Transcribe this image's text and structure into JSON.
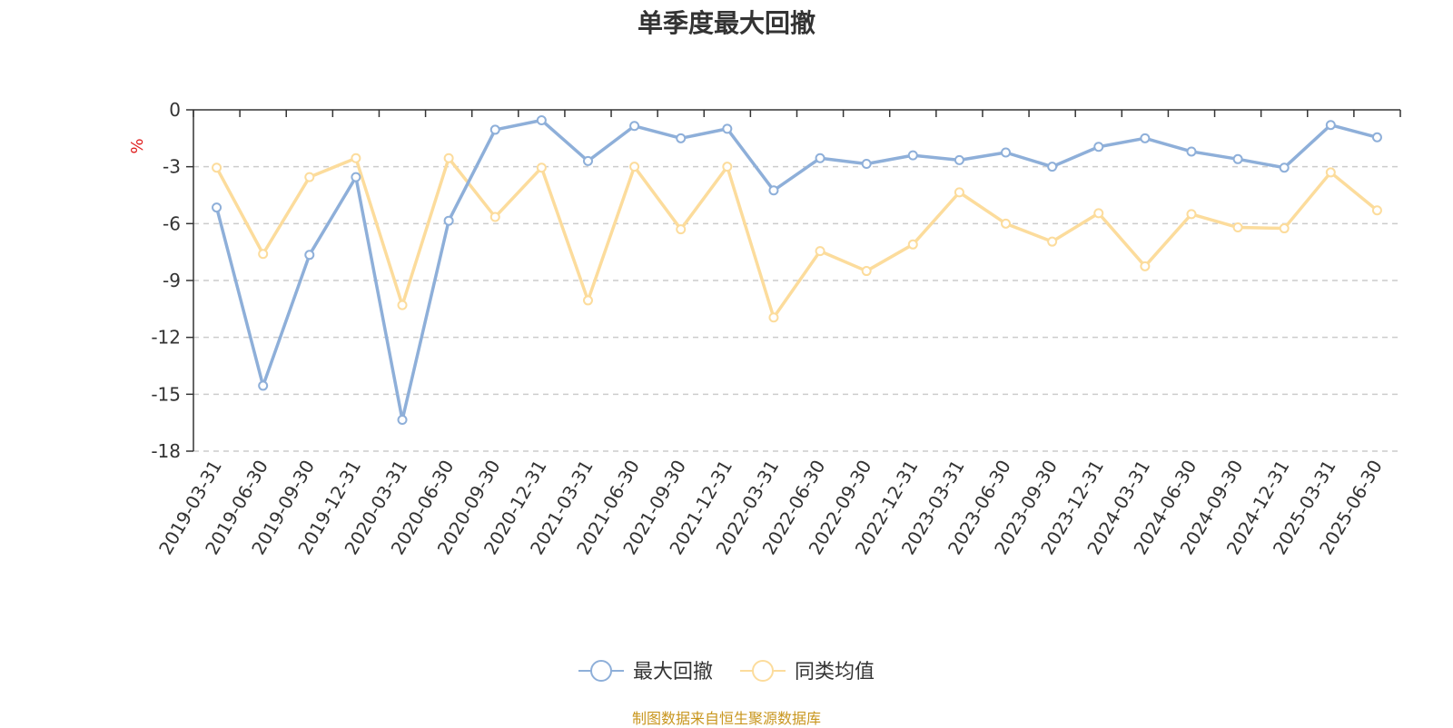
{
  "title": "单季度最大回撤",
  "source": "制图数据来自恒生聚源数据库",
  "chart_data": {
    "type": "line",
    "ylabel": "%",
    "ylim": [
      -18,
      0
    ],
    "yticks": [
      0,
      -3,
      -6,
      -9,
      -12,
      -15,
      -18
    ],
    "grid": true,
    "legend_position": "bottom",
    "categories": [
      "2019-03-31",
      "2019-06-30",
      "2019-09-30",
      "2019-12-31",
      "2020-03-31",
      "2020-06-30",
      "2020-09-30",
      "2020-12-31",
      "2021-03-31",
      "2021-06-30",
      "2021-09-30",
      "2021-12-31",
      "2022-03-31",
      "2022-06-30",
      "2022-09-30",
      "2022-12-31",
      "2023-03-31",
      "2023-06-30",
      "2023-09-30",
      "2023-12-31",
      "2024-03-31",
      "2024-06-30",
      "2024-09-30",
      "2024-12-31",
      "2025-03-31",
      "2025-06-30"
    ],
    "series": [
      {
        "name": "最大回撤",
        "color": "#8eafd9",
        "values": [
          -5.15,
          -14.55,
          -7.65,
          -3.55,
          -16.35,
          -5.85,
          -1.05,
          -0.55,
          -2.7,
          -0.85,
          -1.5,
          -1.0,
          -4.25,
          -2.55,
          -2.85,
          -2.4,
          -2.65,
          -2.25,
          -3.0,
          -1.95,
          -1.5,
          -2.2,
          -2.6,
          -3.05,
          -0.8,
          -1.45
        ]
      },
      {
        "name": "同类均值",
        "color": "#fcdc9c",
        "values": [
          -3.05,
          -7.6,
          -3.55,
          -2.55,
          -10.3,
          -2.55,
          -5.65,
          -3.05,
          -10.05,
          -3.0,
          -6.3,
          -3.0,
          -10.95,
          -7.45,
          -8.5,
          -7.1,
          -4.35,
          -6.0,
          -6.95,
          -5.45,
          -8.25,
          -5.5,
          -6.2,
          -6.25,
          -3.3,
          -5.3
        ]
      }
    ]
  }
}
